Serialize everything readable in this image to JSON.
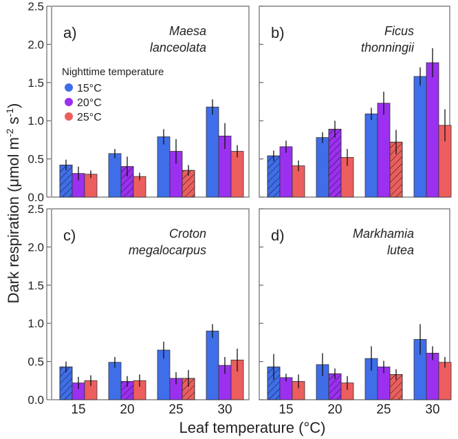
{
  "chart_data": {
    "type": "bar",
    "ylabel": "Dark respiration (μmol m -2 s -1)",
    "ylabel_parts": {
      "main": "Dark respiration (μmol m",
      "exp1": "-2",
      "mid": " s",
      "exp2": "-1",
      "end": ")"
    },
    "xlabel": "Leaf temperature (°C)",
    "ylim": [
      0,
      2.5
    ],
    "yticks": [
      "0.0",
      "0.5",
      "1.0",
      "1.5",
      "2.0",
      "2.5"
    ],
    "categories": [
      "15",
      "20",
      "25",
      "30"
    ],
    "legend": {
      "title": "Nighttime temperature",
      "placement": "top-left of panel a",
      "entries": [
        {
          "label": "15°C",
          "color": "#3f6ee8"
        },
        {
          "label": "20°C",
          "color": "#9b30f0"
        },
        {
          "label": "25°C",
          "color": "#ec5e5e"
        }
      ]
    },
    "hatched_note": "hatched bar = leaf temperature equal to nighttime temperature",
    "panels": [
      {
        "tag": "a)",
        "species": [
          "Maesa",
          "lanceolata"
        ],
        "series": [
          {
            "name": "15°C",
            "values": [
              0.42,
              0.57,
              0.79,
              1.18
            ],
            "errors": [
              0.07,
              0.06,
              0.1,
              0.1
            ]
          },
          {
            "name": "20°C",
            "values": [
              0.31,
              0.4,
              0.6,
              0.8
            ],
            "errors": [
              0.09,
              0.13,
              0.16,
              0.17
            ]
          },
          {
            "name": "25°C",
            "values": [
              0.3,
              0.27,
              0.35,
              0.6
            ],
            "errors": [
              0.05,
              0.05,
              0.07,
              0.08
            ]
          }
        ]
      },
      {
        "tag": "b)",
        "species": [
          "Ficus",
          "thonningii"
        ],
        "series": [
          {
            "name": "15°C",
            "values": [
              0.54,
              0.78,
              1.09,
              1.58
            ],
            "errors": [
              0.07,
              0.07,
              0.08,
              0.12
            ]
          },
          {
            "name": "20°C",
            "values": [
              0.66,
              0.89,
              1.23,
              1.76
            ],
            "errors": [
              0.08,
              0.11,
              0.15,
              0.19
            ]
          },
          {
            "name": "25°C",
            "values": [
              0.41,
              0.52,
              0.72,
              0.94
            ],
            "errors": [
              0.07,
              0.11,
              0.16,
              0.21
            ]
          }
        ]
      },
      {
        "tag": "c)",
        "species": [
          "Croton",
          "megalocarpus"
        ],
        "series": [
          {
            "name": "15°C",
            "values": [
              0.43,
              0.49,
              0.65,
              0.9
            ],
            "errors": [
              0.07,
              0.07,
              0.11,
              0.09
            ]
          },
          {
            "name": "20°C",
            "values": [
              0.22,
              0.24,
              0.28,
              0.45
            ],
            "errors": [
              0.08,
              0.07,
              0.08,
              0.11
            ]
          },
          {
            "name": "25°C",
            "values": [
              0.25,
              0.25,
              0.28,
              0.52
            ],
            "errors": [
              0.07,
              0.08,
              0.11,
              0.15
            ]
          }
        ]
      },
      {
        "tag": "d)",
        "species": [
          "Markhamia",
          "lutea"
        ],
        "series": [
          {
            "name": "15°C",
            "values": [
              0.43,
              0.46,
              0.54,
              0.79
            ],
            "errors": [
              0.17,
              0.15,
              0.16,
              0.2
            ]
          },
          {
            "name": "20°C",
            "values": [
              0.29,
              0.34,
              0.43,
              0.61
            ],
            "errors": [
              0.05,
              0.07,
              0.08,
              0.09
            ]
          },
          {
            "name": "25°C",
            "values": [
              0.24,
              0.22,
              0.33,
              0.49
            ],
            "errors": [
              0.09,
              0.09,
              0.07,
              0.07
            ]
          }
        ]
      }
    ]
  }
}
